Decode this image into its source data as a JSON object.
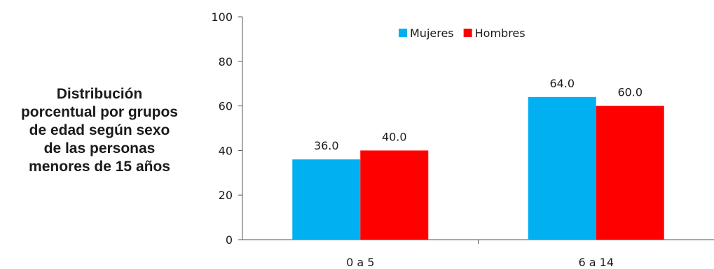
{
  "side_title": "Distribución\nporcentual por grupos\nde edad según sexo\nde las personas\nmenores de 15 años",
  "chart_data": {
    "type": "bar",
    "categories": [
      "0 a 5",
      "6 a 14"
    ],
    "series": [
      {
        "name": "Mujeres",
        "values": [
          36.0,
          64.0
        ],
        "color": "#00b0f0"
      },
      {
        "name": "Hombres",
        "values": [
          40.0,
          60.0
        ],
        "color": "#ff0000"
      }
    ],
    "data_labels": [
      [
        "36.0",
        "64.0"
      ],
      [
        "40.0",
        "60.0"
      ]
    ],
    "ylim": [
      0,
      100
    ],
    "yticks": [
      0,
      20,
      40,
      60,
      80,
      100
    ],
    "legend_position": "top-right",
    "grid": false
  }
}
